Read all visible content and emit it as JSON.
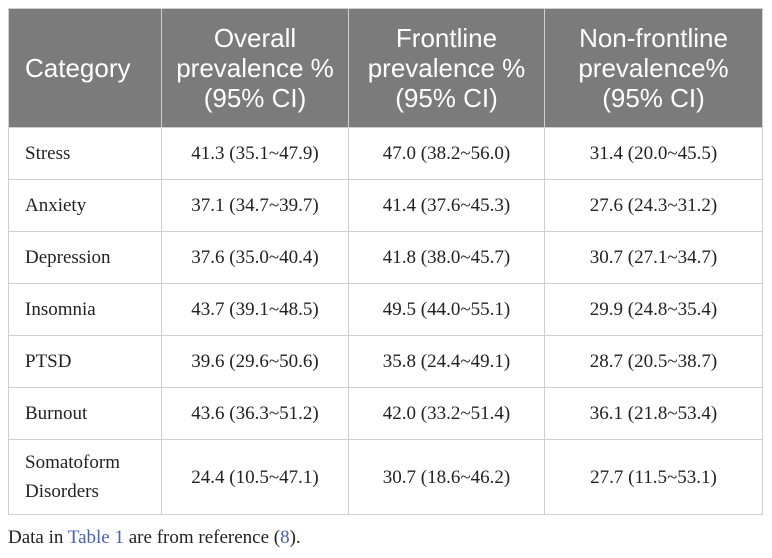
{
  "table": {
    "headers": [
      "Category",
      "Overall prevalence % (95% CI)",
      "Frontline prevalence % (95% CI)",
      "Non-frontline prevalence% (95% CI)"
    ],
    "rows": [
      [
        "Stress",
        "41.3 (35.1~47.9)",
        "47.0 (38.2~56.0)",
        "31.4 (20.0~45.5)"
      ],
      [
        "Anxiety",
        "37.1 (34.7~39.7)",
        "41.4 (37.6~45.3)",
        "27.6 (24.3~31.2)"
      ],
      [
        "Depression",
        "37.6 (35.0~40.4)",
        "41.8 (38.0~45.7)",
        "30.7 (27.1~34.7)"
      ],
      [
        "Insomnia",
        "43.7 (39.1~48.5)",
        "49.5 (44.0~55.1)",
        "29.9 (24.8~35.4)"
      ],
      [
        "PTSD",
        "39.6 (29.6~50.6)",
        "35.8 (24.4~49.1)",
        "28.7 (20.5~38.7)"
      ],
      [
        "Burnout",
        "43.6 (36.3~51.2)",
        "42.0 (33.2~51.4)",
        "36.1 (21.8~53.4)"
      ],
      [
        "Somatoform Disorders",
        "24.4 (10.5~47.1)",
        "30.7 (18.6~46.2)",
        "27.7 (11.5~53.1)"
      ]
    ]
  },
  "footnote": {
    "prefix": "Data in ",
    "table_link": "Table 1",
    "middle": " are from reference (",
    "ref_link": "8",
    "suffix": ")."
  }
}
